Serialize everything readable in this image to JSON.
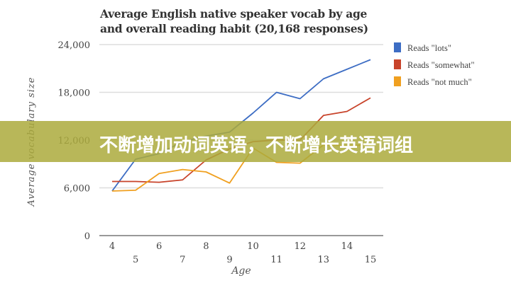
{
  "chart_data": {
    "type": "line",
    "title": "Average English native speaker vocab by age and overall reading habit (20,168 responses)",
    "title_lines": [
      "Average English native speaker vocab by age",
      "and overall reading habit (20,168 responses)"
    ],
    "xlabel": "Age",
    "ylabel": "Average vocabulary size",
    "x": [
      4,
      5,
      6,
      7,
      8,
      9,
      10,
      11,
      12,
      13,
      14,
      15
    ],
    "x_tick_labels": [
      "4",
      "5",
      "6",
      "7",
      "8",
      "9",
      "10",
      "11",
      "12",
      "13",
      "14",
      "15"
    ],
    "y_ticks": [
      0,
      6000,
      12000,
      18000,
      24000
    ],
    "y_tick_labels": [
      "0",
      "6,000",
      "12,000",
      "18,000",
      "24,000"
    ],
    "ylim": [
      0,
      24000
    ],
    "grid": true,
    "legend_position": "right",
    "series": [
      {
        "name": "Reads \"lots\"",
        "color": "#3d6dc4",
        "values": [
          5600,
          9600,
          10300,
          11800,
          12500,
          13000,
          15400,
          18000,
          17200,
          19700,
          20900,
          22100
        ]
      },
      {
        "name": "Reads \"somewhat\"",
        "color": "#c8432a",
        "values": [
          6800,
          6800,
          6700,
          7000,
          9500,
          10900,
          11800,
          12000,
          12000,
          15100,
          15600,
          17300
        ]
      },
      {
        "name": "Reads \"not much\"",
        "color": "#f0a020",
        "values": [
          5600,
          5700,
          7800,
          8300,
          8000,
          6600,
          11000,
          9200,
          9100,
          11400,
          11300,
          11400
        ]
      }
    ]
  },
  "banner": {
    "text": "不断增加动词英语，不断增长英语词组"
  }
}
